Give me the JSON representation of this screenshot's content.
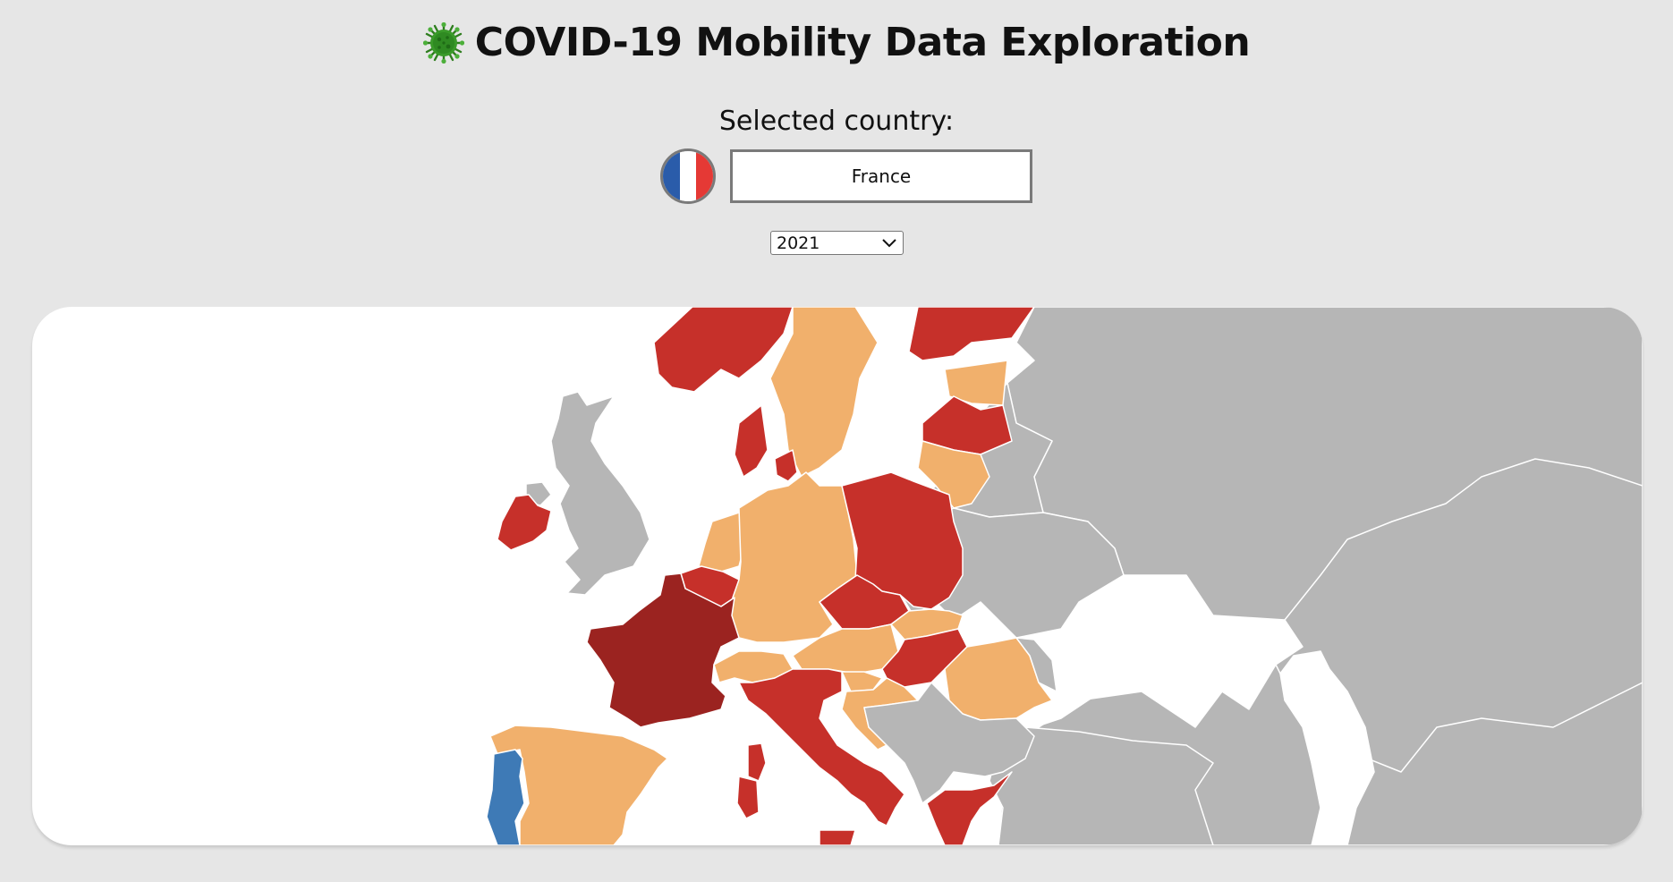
{
  "header": {
    "title": "COVID-19 Mobility Data Exploration",
    "icon": "virus-icon"
  },
  "selection": {
    "label": "Selected country:",
    "country": "France",
    "flag_icon": "france-flag-icon",
    "flag_colors": [
      "#2a5caa",
      "#ffffff",
      "#e53935"
    ]
  },
  "year_select": {
    "value": "2021",
    "icon": "chevron-down-icon"
  },
  "map": {
    "colors": {
      "selected": "#9b2320",
      "dark_red": "#c6302a",
      "orange": "#f1b06c",
      "blue": "#3e7ab6",
      "no_data": "#b6b6b6",
      "water": "#ffffff"
    },
    "regions": [
      {
        "name": "France",
        "category": "selected"
      },
      {
        "name": "Norway",
        "category": "dark_red"
      },
      {
        "name": "Sweden",
        "category": "orange"
      },
      {
        "name": "Finland",
        "category": "dark_red"
      },
      {
        "name": "Estonia",
        "category": "orange"
      },
      {
        "name": "Latvia",
        "category": "dark_red"
      },
      {
        "name": "Lithuania",
        "category": "orange"
      },
      {
        "name": "Denmark",
        "category": "dark_red"
      },
      {
        "name": "Ireland",
        "category": "dark_red"
      },
      {
        "name": "United Kingdom",
        "category": "no_data"
      },
      {
        "name": "Netherlands",
        "category": "orange"
      },
      {
        "name": "Belgium",
        "category": "dark_red"
      },
      {
        "name": "Germany",
        "category": "orange"
      },
      {
        "name": "Poland",
        "category": "dark_red"
      },
      {
        "name": "Czechia",
        "category": "dark_red"
      },
      {
        "name": "Slovakia",
        "category": "orange"
      },
      {
        "name": "Austria",
        "category": "orange"
      },
      {
        "name": "Hungary",
        "category": "dark_red"
      },
      {
        "name": "Switzerland",
        "category": "orange"
      },
      {
        "name": "Italy",
        "category": "dark_red"
      },
      {
        "name": "Slovenia",
        "category": "orange"
      },
      {
        "name": "Croatia",
        "category": "orange"
      },
      {
        "name": "Romania",
        "category": "orange"
      },
      {
        "name": "Spain",
        "category": "orange"
      },
      {
        "name": "Portugal",
        "category": "blue"
      },
      {
        "name": "Greece",
        "category": "dark_red"
      },
      {
        "name": "Balkans",
        "category": "no_data"
      },
      {
        "name": "Belarus",
        "category": "no_data"
      },
      {
        "name": "Ukraine",
        "category": "no_data"
      },
      {
        "name": "Russia",
        "category": "no_data"
      },
      {
        "name": "Turkey",
        "category": "no_data"
      },
      {
        "name": "Kazakhstan",
        "category": "no_data"
      }
    ]
  }
}
